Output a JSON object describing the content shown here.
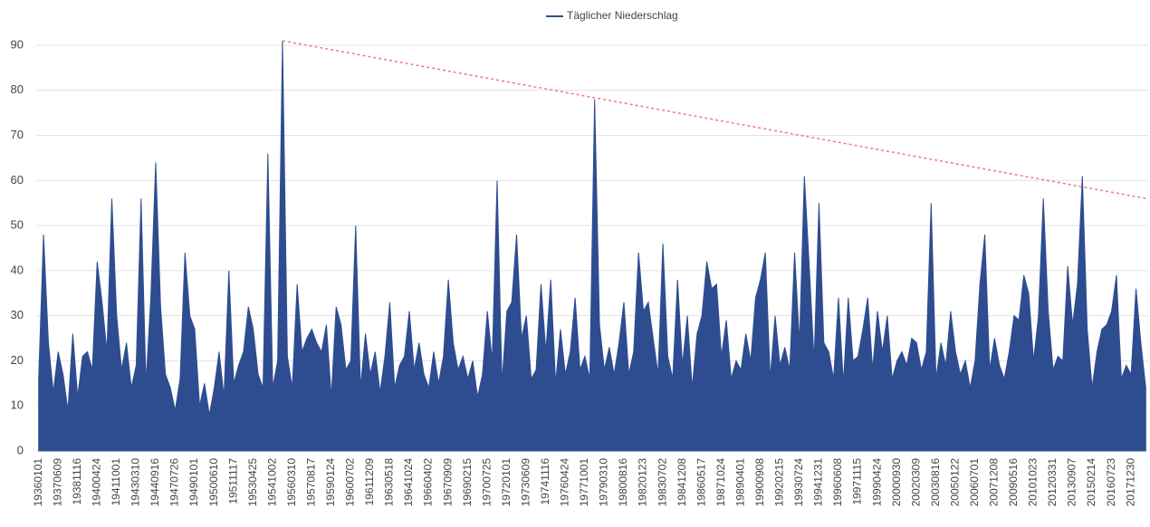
{
  "chart_data": {
    "type": "line",
    "legend": "top",
    "grid": true,
    "ylim": [
      0,
      90
    ],
    "yticks": [
      0,
      10,
      20,
      30,
      40,
      50,
      60,
      70,
      80,
      90
    ],
    "categories": [
      "19360101",
      null,
      null,
      null,
      "19370609",
      null,
      null,
      null,
      "19381116",
      null,
      null,
      null,
      "19400424",
      null,
      null,
      null,
      "19411001",
      null,
      null,
      null,
      "19430310",
      null,
      null,
      null,
      "19440916",
      null,
      null,
      null,
      "19470726",
      null,
      null,
      null,
      "19490101",
      null,
      null,
      null,
      "19500610",
      null,
      null,
      null,
      "19511117",
      null,
      null,
      null,
      "19530425",
      null,
      null,
      null,
      "19541002",
      null,
      null,
      null,
      "19560310",
      null,
      null,
      null,
      "19570817",
      null,
      null,
      null,
      "19590124",
      null,
      null,
      null,
      "19600702",
      null,
      null,
      null,
      "19611209",
      null,
      null,
      null,
      "19630518",
      null,
      null,
      null,
      "19641024",
      null,
      null,
      null,
      "19660402",
      null,
      null,
      null,
      "19670909",
      null,
      null,
      null,
      "19690215",
      null,
      null,
      null,
      "19700725",
      null,
      null,
      null,
      "19720101",
      null,
      null,
      null,
      "19730609",
      null,
      null,
      null,
      "19741116",
      null,
      null,
      null,
      "19760424",
      null,
      null,
      null,
      "19771001",
      null,
      null,
      null,
      "19790310",
      null,
      null,
      null,
      "19800816",
      null,
      null,
      null,
      "19820123",
      null,
      null,
      null,
      "19830702",
      null,
      null,
      null,
      "19841208",
      null,
      null,
      null,
      "19860517",
      null,
      null,
      null,
      "19871024",
      null,
      null,
      null,
      "19890401",
      null,
      null,
      null,
      "19900908",
      null,
      null,
      null,
      "19920215",
      null,
      null,
      null,
      "19930724",
      null,
      null,
      null,
      "19941231",
      null,
      null,
      null,
      "19960608",
      null,
      null,
      null,
      "19971115",
      null,
      null,
      null,
      "19990424",
      null,
      null,
      null,
      "20000930",
      null,
      null,
      null,
      "20020309",
      null,
      null,
      null,
      "20030816",
      null,
      null,
      null,
      "20050122",
      null,
      null,
      null,
      "20060701",
      null,
      null,
      null,
      "20071208",
      null,
      null,
      null,
      "20090516",
      null,
      null,
      null,
      "20101023",
      null,
      null,
      null,
      "20120331",
      null,
      null,
      null,
      "20130907",
      null,
      null,
      null,
      "20150214",
      null,
      null,
      null,
      "20160723",
      null,
      null,
      null,
      "20171230",
      null,
      null,
      null
    ],
    "series": [
      {
        "name": "Täglicher Niederschlag",
        "color": "#2e4d91",
        "values": [
          16,
          48,
          24,
          13,
          22,
          17,
          9,
          26,
          12,
          21,
          22,
          18,
          42,
          33,
          22,
          56,
          30,
          18,
          24,
          14,
          19,
          56,
          15,
          34,
          64,
          32,
          17,
          14,
          9,
          16,
          44,
          30,
          27,
          10,
          15,
          8,
          14,
          22,
          12,
          40,
          15,
          19,
          22,
          32,
          27,
          17,
          14,
          66,
          14,
          20,
          91,
          21,
          14,
          37,
          22,
          25,
          27,
          24,
          22,
          28,
          12,
          32,
          28,
          18,
          20,
          50,
          14,
          26,
          17,
          22,
          13,
          21,
          33,
          14,
          19,
          21,
          31,
          18,
          24,
          17,
          14,
          22,
          15,
          21,
          38,
          24,
          18,
          21,
          16,
          20,
          12,
          17,
          31,
          20,
          60,
          15,
          31,
          33,
          48,
          25,
          30,
          16,
          18,
          37,
          22,
          38,
          15,
          27,
          17,
          22,
          34,
          18,
          21,
          16,
          78,
          28,
          18,
          23,
          17,
          24,
          33,
          17,
          22,
          44,
          31,
          33,
          25,
          17,
          46,
          21,
          16,
          38,
          19,
          30,
          14,
          26,
          30,
          42,
          36,
          37,
          21,
          29,
          16,
          20,
          18,
          26,
          20,
          34,
          38,
          44,
          16,
          30,
          19,
          23,
          18,
          44,
          24,
          61,
          41,
          20,
          55,
          24,
          22,
          16,
          34,
          15,
          34,
          20,
          21,
          27,
          34,
          18,
          31,
          22,
          30,
          16,
          20,
          22,
          19,
          25,
          24,
          18,
          22,
          55,
          16,
          24,
          19,
          31,
          22,
          17,
          20,
          14,
          20,
          37,
          48,
          18,
          25,
          19,
          16,
          22,
          30,
          29,
          39,
          35,
          20,
          30,
          56,
          31,
          18,
          21,
          20,
          41,
          28,
          37,
          61,
          27,
          14,
          22,
          27,
          28,
          31,
          39,
          16,
          19,
          17,
          36,
          24,
          14
        ]
      }
    ],
    "trendline": {
      "color": "#f4787c",
      "from": 91,
      "to": 56
    }
  }
}
